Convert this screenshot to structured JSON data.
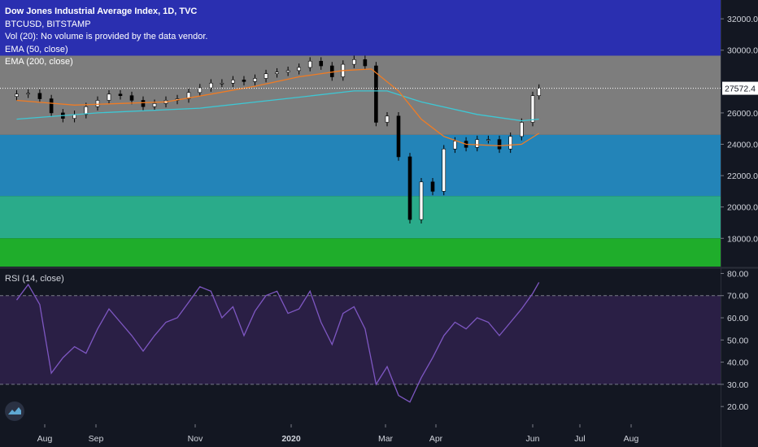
{
  "legend": {
    "title": "Dow Jones Industrial Average Index, 1D, TVC",
    "line2": "BTCUSD, BITSTAMP",
    "line3": "Vol (20): No volume is provided by the data vendor.",
    "line4": "EMA (50, close)",
    "line5": "EMA (200, close)"
  },
  "rsi_label": "RSI (14, close)",
  "colors": {
    "background": "#131722",
    "band_blue_dark": "#2a2fb0",
    "band_gray": "#7d7d7d",
    "band_blue": "#2384b8",
    "band_teal": "#2aab8a",
    "band_green": "#1fad2b",
    "ema50": "#f07c24",
    "ema200": "#3ec7d4",
    "rsi_line": "#7e57c2",
    "rsi_band": "#2a1f45"
  },
  "price_label": "27572.4",
  "chart_data": [
    {
      "type": "candlestick",
      "title": "Dow Jones Industrial Average Index, 1D, TVC",
      "x_tick_labels": [
        "Aug",
        "Sep",
        "Nov",
        "2020",
        "Mar",
        "Apr",
        "Jun",
        "Jul",
        "Aug"
      ],
      "y_tick_labels": [
        "18000.0",
        "20000.0",
        "22000.0",
        "24000.0",
        "26000.0",
        "28000.0",
        "30000.0",
        "32000.0"
      ],
      "ylim": [
        16200,
        33200
      ],
      "last_price": 27572.4,
      "background_bands": [
        {
          "from": 29650,
          "to": 33200,
          "color": "#2a2fb0"
        },
        {
          "from": 24600,
          "to": 29650,
          "color": "#7d7d7d"
        },
        {
          "from": 20700,
          "to": 24600,
          "color": "#2384b8"
        },
        {
          "from": 18000,
          "to": 20700,
          "color": "#2aab8a"
        },
        {
          "from": 16200,
          "to": 18000,
          "color": "#1fad2b"
        }
      ],
      "close_series": [
        {
          "x": "2019-07-15",
          "y": 27200
        },
        {
          "x": "2019-07-22",
          "y": 27250
        },
        {
          "x": "2019-07-29",
          "y": 26900
        },
        {
          "x": "2019-08-05",
          "y": 26000
        },
        {
          "x": "2019-08-12",
          "y": 25650
        },
        {
          "x": "2019-08-19",
          "y": 25900
        },
        {
          "x": "2019-08-26",
          "y": 26400
        },
        {
          "x": "2019-09-02",
          "y": 26800
        },
        {
          "x": "2019-09-09",
          "y": 27200
        },
        {
          "x": "2019-09-16",
          "y": 27100
        },
        {
          "x": "2019-09-23",
          "y": 26800
        },
        {
          "x": "2019-09-30",
          "y": 26400
        },
        {
          "x": "2019-10-07",
          "y": 26600
        },
        {
          "x": "2019-10-14",
          "y": 26800
        },
        {
          "x": "2019-10-21",
          "y": 26900
        },
        {
          "x": "2019-10-28",
          "y": 27300
        },
        {
          "x": "2019-11-04",
          "y": 27600
        },
        {
          "x": "2019-11-11",
          "y": 27900
        },
        {
          "x": "2019-11-18",
          "y": 27900
        },
        {
          "x": "2019-11-25",
          "y": 28100
        },
        {
          "x": "2019-12-02",
          "y": 28000
        },
        {
          "x": "2019-12-09",
          "y": 28200
        },
        {
          "x": "2019-12-16",
          "y": 28500
        },
        {
          "x": "2019-12-23",
          "y": 28600
        },
        {
          "x": "2019-12-30",
          "y": 28700
        },
        {
          "x": "2020-01-06",
          "y": 28900
        },
        {
          "x": "2020-01-13",
          "y": 29300
        },
        {
          "x": "2020-01-20",
          "y": 29000
        },
        {
          "x": "2020-01-27",
          "y": 28300
        },
        {
          "x": "2020-02-03",
          "y": 29100
        },
        {
          "x": "2020-02-10",
          "y": 29400
        },
        {
          "x": "2020-02-17",
          "y": 29000
        },
        {
          "x": "2020-02-24",
          "y": 25400
        },
        {
          "x": "2020-03-02",
          "y": 25800
        },
        {
          "x": "2020-03-09",
          "y": 23200
        },
        {
          "x": "2020-03-16",
          "y": 19200
        },
        {
          "x": "2020-03-23",
          "y": 21600
        },
        {
          "x": "2020-03-30",
          "y": 21000
        },
        {
          "x": "2020-04-06",
          "y": 23700
        },
        {
          "x": "2020-04-13",
          "y": 24200
        },
        {
          "x": "2020-04-20",
          "y": 23800
        },
        {
          "x": "2020-04-27",
          "y": 24300
        },
        {
          "x": "2020-05-04",
          "y": 24300
        },
        {
          "x": "2020-05-11",
          "y": 23700
        },
        {
          "x": "2020-05-18",
          "y": 24500
        },
        {
          "x": "2020-05-25",
          "y": 25400
        },
        {
          "x": "2020-06-01",
          "y": 27100
        },
        {
          "x": "2020-06-05",
          "y": 27572
        }
      ],
      "ema50": [
        {
          "x": "2019-07-15",
          "y": 26800
        },
        {
          "x": "2019-08-19",
          "y": 26500
        },
        {
          "x": "2019-09-16",
          "y": 26600
        },
        {
          "x": "2019-10-14",
          "y": 26700
        },
        {
          "x": "2019-11-11",
          "y": 27200
        },
        {
          "x": "2019-12-09",
          "y": 27700
        },
        {
          "x": "2020-01-06",
          "y": 28300
        },
        {
          "x": "2020-02-03",
          "y": 28700
        },
        {
          "x": "2020-02-21",
          "y": 28800
        },
        {
          "x": "2020-03-09",
          "y": 27400
        },
        {
          "x": "2020-03-23",
          "y": 25600
        },
        {
          "x": "2020-04-06",
          "y": 24500
        },
        {
          "x": "2020-04-20",
          "y": 24000
        },
        {
          "x": "2020-05-11",
          "y": 23900
        },
        {
          "x": "2020-05-25",
          "y": 24000
        },
        {
          "x": "2020-06-05",
          "y": 24700
        }
      ],
      "ema200": [
        {
          "x": "2019-07-15",
          "y": 25600
        },
        {
          "x": "2019-09-02",
          "y": 26000
        },
        {
          "x": "2019-11-04",
          "y": 26300
        },
        {
          "x": "2020-01-06",
          "y": 27000
        },
        {
          "x": "2020-02-10",
          "y": 27400
        },
        {
          "x": "2020-03-02",
          "y": 27400
        },
        {
          "x": "2020-03-23",
          "y": 26700
        },
        {
          "x": "2020-04-27",
          "y": 25900
        },
        {
          "x": "2020-05-25",
          "y": 25500
        },
        {
          "x": "2020-06-05",
          "y": 25600
        }
      ]
    },
    {
      "type": "line",
      "title": "RSI (14, close)",
      "y_tick_labels": [
        "20.00",
        "30.00",
        "40.00",
        "50.00",
        "60.00",
        "70.00",
        "80.00"
      ],
      "ylim": [
        12,
        82
      ],
      "band": [
        30,
        70
      ],
      "series": [
        {
          "x": "2019-07-15",
          "y": 68
        },
        {
          "x": "2019-07-22",
          "y": 75
        },
        {
          "x": "2019-07-29",
          "y": 66
        },
        {
          "x": "2019-08-05",
          "y": 35
        },
        {
          "x": "2019-08-12",
          "y": 42
        },
        {
          "x": "2019-08-19",
          "y": 47
        },
        {
          "x": "2019-08-26",
          "y": 44
        },
        {
          "x": "2019-09-02",
          "y": 55
        },
        {
          "x": "2019-09-09",
          "y": 64
        },
        {
          "x": "2019-09-16",
          "y": 58
        },
        {
          "x": "2019-09-23",
          "y": 52
        },
        {
          "x": "2019-09-30",
          "y": 45
        },
        {
          "x": "2019-10-07",
          "y": 52
        },
        {
          "x": "2019-10-14",
          "y": 58
        },
        {
          "x": "2019-10-21",
          "y": 60
        },
        {
          "x": "2019-10-28",
          "y": 67
        },
        {
          "x": "2019-11-04",
          "y": 74
        },
        {
          "x": "2019-11-11",
          "y": 72
        },
        {
          "x": "2019-11-18",
          "y": 60
        },
        {
          "x": "2019-11-25",
          "y": 65
        },
        {
          "x": "2019-12-02",
          "y": 52
        },
        {
          "x": "2019-12-09",
          "y": 63
        },
        {
          "x": "2019-12-16",
          "y": 70
        },
        {
          "x": "2019-12-23",
          "y": 72
        },
        {
          "x": "2019-12-30",
          "y": 62
        },
        {
          "x": "2020-01-06",
          "y": 64
        },
        {
          "x": "2020-01-13",
          "y": 72
        },
        {
          "x": "2020-01-20",
          "y": 58
        },
        {
          "x": "2020-01-27",
          "y": 48
        },
        {
          "x": "2020-02-03",
          "y": 62
        },
        {
          "x": "2020-02-10",
          "y": 65
        },
        {
          "x": "2020-02-17",
          "y": 55
        },
        {
          "x": "2020-02-24",
          "y": 30
        },
        {
          "x": "2020-03-02",
          "y": 38
        },
        {
          "x": "2020-03-09",
          "y": 25
        },
        {
          "x": "2020-03-16",
          "y": 22
        },
        {
          "x": "2020-03-23",
          "y": 33
        },
        {
          "x": "2020-03-30",
          "y": 42
        },
        {
          "x": "2020-04-06",
          "y": 52
        },
        {
          "x": "2020-04-13",
          "y": 58
        },
        {
          "x": "2020-04-20",
          "y": 55
        },
        {
          "x": "2020-04-27",
          "y": 60
        },
        {
          "x": "2020-05-04",
          "y": 58
        },
        {
          "x": "2020-05-11",
          "y": 52
        },
        {
          "x": "2020-05-18",
          "y": 58
        },
        {
          "x": "2020-05-25",
          "y": 64
        },
        {
          "x": "2020-06-01",
          "y": 71
        },
        {
          "x": "2020-06-05",
          "y": 76
        }
      ]
    }
  ]
}
